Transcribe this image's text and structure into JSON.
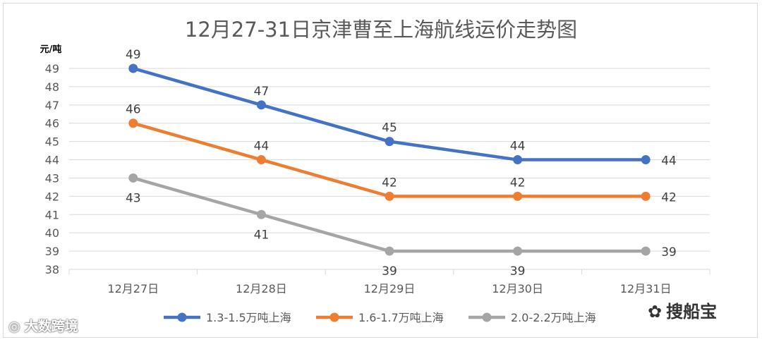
{
  "chart_data": {
    "type": "line",
    "title": "12月27-31日京津曹至上海航线运价走势图",
    "ylabel": "元/吨",
    "xlabel": "",
    "categories": [
      "12月27日",
      "12月28日",
      "12月29日",
      "12月30日",
      "12月31日"
    ],
    "ylim": [
      38,
      49
    ],
    "yticks": [
      38,
      39,
      40,
      41,
      42,
      43,
      44,
      45,
      46,
      47,
      48,
      49
    ],
    "grid": true,
    "legend": "bottom",
    "series": [
      {
        "name": "1.3-1.5万吨上海",
        "color": "#4472C4",
        "values": [
          49,
          47,
          45,
          44,
          44
        ],
        "label_pos": [
          "above",
          "above",
          "above",
          "above",
          "right"
        ]
      },
      {
        "name": "1.6-1.7万吨上海",
        "color": "#ED7D31",
        "values": [
          46,
          44,
          42,
          42,
          42
        ],
        "label_pos": [
          "above",
          "above",
          "above",
          "above",
          "right"
        ]
      },
      {
        "name": "2.0-2.2万吨上海",
        "color": "#A5A5A5",
        "values": [
          43,
          41,
          39,
          39,
          39
        ],
        "label_pos": [
          "below",
          "below",
          "below",
          "below",
          "right"
        ]
      }
    ]
  },
  "watermarks": {
    "left": "大数跨境",
    "right": "搜船宝",
    "left_icon": "weibo-icon",
    "right_icon": "wechat-icon"
  }
}
